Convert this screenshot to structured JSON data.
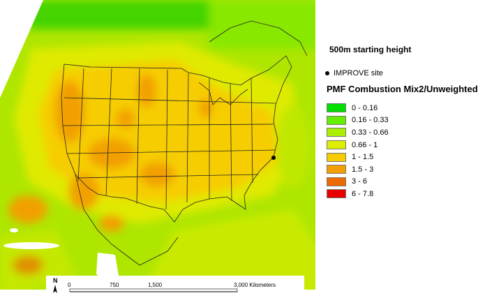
{
  "legend": {
    "subtitle": "500m starting height",
    "site_label": "IMPROVE site",
    "title": "PMF Combustion Mix2/Unweighted",
    "classes": [
      {
        "label": "0 - 0.16",
        "color": "#00e000"
      },
      {
        "label": "0.16 - 0.33",
        "color": "#66ee00"
      },
      {
        "label": "0.33 - 0.66",
        "color": "#aaee00"
      },
      {
        "label": "0.66 - 1",
        "color": "#ddee00"
      },
      {
        "label": "1 - 1.5",
        "color": "#f7cc00"
      },
      {
        "label": "1.5 - 3",
        "color": "#f2a000"
      },
      {
        "label": "3 - 6",
        "color": "#ec6a00"
      },
      {
        "label": "6 - 7.8",
        "color": "#e80000"
      }
    ]
  },
  "scalebar": {
    "north_label": "N",
    "ticks": [
      "0",
      "750",
      "1,500",
      "3,000 Kilometers"
    ]
  },
  "colors": {
    "water": "#ffffff",
    "boundary": "#222222",
    "site": "#000000"
  }
}
